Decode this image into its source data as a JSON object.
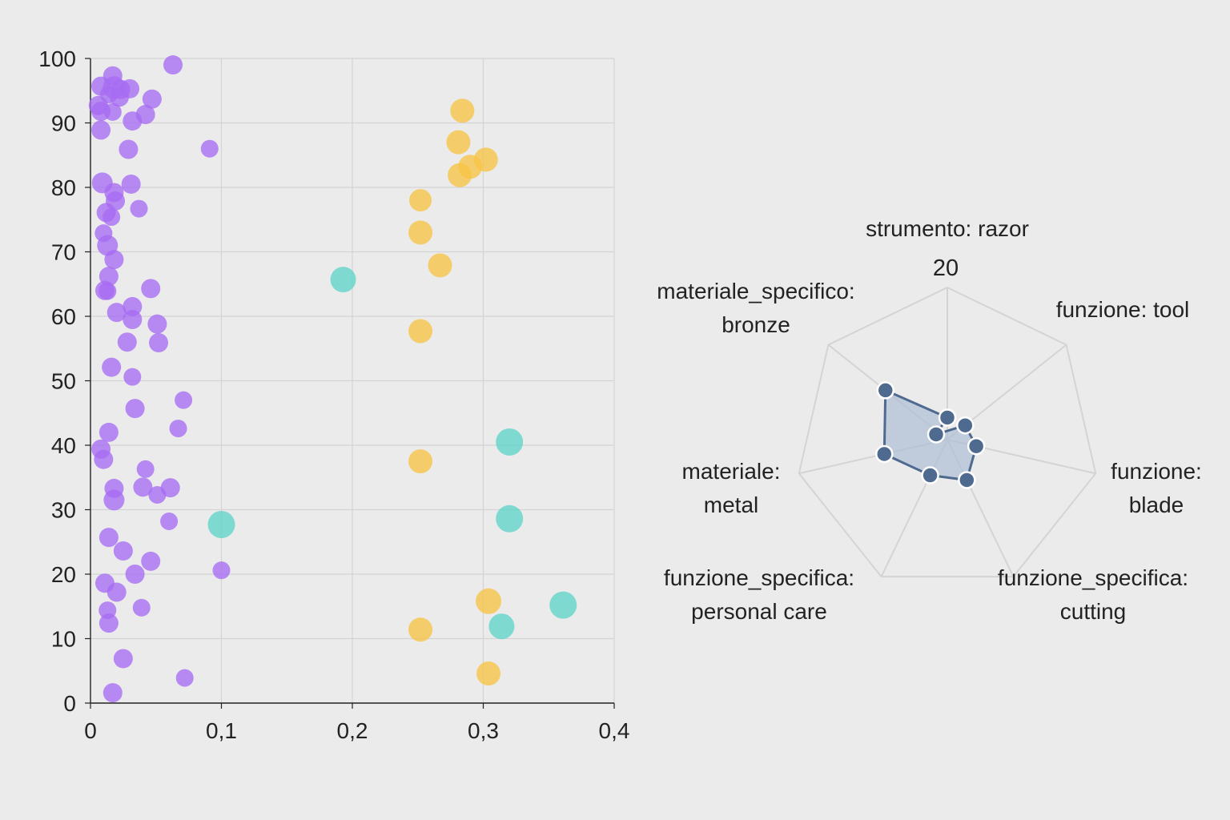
{
  "colors": {
    "background": "#ebebeb",
    "grid": "#d4d4d4",
    "axis": "#222222",
    "purple": "#a66cf2",
    "yellow": "#f6c445",
    "teal": "#5fd3c8",
    "radar_stroke": "#4f6a8f",
    "radar_fill": "#aebfd6",
    "radar_point": "#4f6a8f"
  },
  "chart_data": [
    {
      "type": "scatter",
      "title": "",
      "xlabel": "",
      "ylabel": "",
      "xlim": [
        0,
        0.4
      ],
      "ylim": [
        0,
        100
      ],
      "x_ticks": [
        {
          "value": 0,
          "label": "0"
        },
        {
          "value": 0.1,
          "label": "0,1"
        },
        {
          "value": 0.2,
          "label": "0,2"
        },
        {
          "value": 0.3,
          "label": "0,3"
        },
        {
          "value": 0.4,
          "label": "0,4"
        }
      ],
      "y_ticks": [
        {
          "value": 0,
          "label": "0"
        },
        {
          "value": 10,
          "label": "10"
        },
        {
          "value": 20,
          "label": "20"
        },
        {
          "value": 30,
          "label": "30"
        },
        {
          "value": 40,
          "label": "40"
        },
        {
          "value": 50,
          "label": "50"
        },
        {
          "value": 60,
          "label": "60"
        },
        {
          "value": 70,
          "label": "70"
        },
        {
          "value": 80,
          "label": "80"
        },
        {
          "value": 90,
          "label": "90"
        },
        {
          "value": 100,
          "label": "100"
        }
      ],
      "grid": true,
      "series": [
        {
          "color_key": "purple",
          "points": [
            {
              "x": 0.063,
              "y": 99.0,
              "s": 12
            },
            {
              "x": 0.017,
              "y": 97.3,
              "s": 12
            },
            {
              "x": 0.008,
              "y": 95.7,
              "s": 12
            },
            {
              "x": 0.018,
              "y": 95.5,
              "s": 14
            },
            {
              "x": 0.023,
              "y": 95.2,
              "s": 12
            },
            {
              "x": 0.03,
              "y": 95.3,
              "s": 12
            },
            {
              "x": 0.014,
              "y": 94.4,
              "s": 11
            },
            {
              "x": 0.022,
              "y": 94.0,
              "s": 12
            },
            {
              "x": 0.047,
              "y": 93.7,
              "s": 12
            },
            {
              "x": 0.006,
              "y": 92.7,
              "s": 12
            },
            {
              "x": 0.008,
              "y": 91.8,
              "s": 12
            },
            {
              "x": 0.017,
              "y": 91.7,
              "s": 11
            },
            {
              "x": 0.042,
              "y": 91.3,
              "s": 12
            },
            {
              "x": 0.032,
              "y": 90.3,
              "s": 12
            },
            {
              "x": 0.008,
              "y": 88.9,
              "s": 12
            },
            {
              "x": 0.029,
              "y": 85.9,
              "s": 12
            },
            {
              "x": 0.091,
              "y": 86.0,
              "s": 11
            },
            {
              "x": 0.009,
              "y": 80.7,
              "s": 13
            },
            {
              "x": 0.031,
              "y": 80.5,
              "s": 12
            },
            {
              "x": 0.018,
              "y": 79.2,
              "s": 12
            },
            {
              "x": 0.019,
              "y": 77.9,
              "s": 12
            },
            {
              "x": 0.037,
              "y": 76.7,
              "s": 11
            },
            {
              "x": 0.012,
              "y": 76.1,
              "s": 12
            },
            {
              "x": 0.016,
              "y": 75.4,
              "s": 11
            },
            {
              "x": 0.01,
              "y": 72.9,
              "s": 11
            },
            {
              "x": 0.013,
              "y": 71.0,
              "s": 13
            },
            {
              "x": 0.018,
              "y": 68.8,
              "s": 12
            },
            {
              "x": 0.014,
              "y": 66.2,
              "s": 12
            },
            {
              "x": 0.046,
              "y": 64.3,
              "s": 12
            },
            {
              "x": 0.011,
              "y": 64.0,
              "s": 12
            },
            {
              "x": 0.013,
              "y": 63.9,
              "s": 11
            },
            {
              "x": 0.032,
              "y": 61.5,
              "s": 12
            },
            {
              "x": 0.02,
              "y": 60.6,
              "s": 12
            },
            {
              "x": 0.032,
              "y": 59.5,
              "s": 12
            },
            {
              "x": 0.051,
              "y": 58.8,
              "s": 12
            },
            {
              "x": 0.028,
              "y": 56.0,
              "s": 12
            },
            {
              "x": 0.052,
              "y": 55.9,
              "s": 12
            },
            {
              "x": 0.016,
              "y": 52.1,
              "s": 12
            },
            {
              "x": 0.032,
              "y": 50.6,
              "s": 11
            },
            {
              "x": 0.071,
              "y": 47.0,
              "s": 11
            },
            {
              "x": 0.034,
              "y": 45.7,
              "s": 12
            },
            {
              "x": 0.067,
              "y": 42.6,
              "s": 11
            },
            {
              "x": 0.014,
              "y": 42.0,
              "s": 12
            },
            {
              "x": 0.008,
              "y": 39.4,
              "s": 12
            },
            {
              "x": 0.01,
              "y": 37.8,
              "s": 12
            },
            {
              "x": 0.042,
              "y": 36.3,
              "s": 11
            },
            {
              "x": 0.018,
              "y": 33.3,
              "s": 12
            },
            {
              "x": 0.04,
              "y": 33.5,
              "s": 12
            },
            {
              "x": 0.061,
              "y": 33.4,
              "s": 12
            },
            {
              "x": 0.051,
              "y": 32.3,
              "s": 11
            },
            {
              "x": 0.018,
              "y": 31.5,
              "s": 13
            },
            {
              "x": 0.06,
              "y": 28.2,
              "s": 11
            },
            {
              "x": 0.014,
              "y": 25.7,
              "s": 12
            },
            {
              "x": 0.025,
              "y": 23.6,
              "s": 12
            },
            {
              "x": 0.046,
              "y": 22.0,
              "s": 12
            },
            {
              "x": 0.034,
              "y": 20.0,
              "s": 12
            },
            {
              "x": 0.1,
              "y": 20.6,
              "s": 11
            },
            {
              "x": 0.011,
              "y": 18.6,
              "s": 12
            },
            {
              "x": 0.02,
              "y": 17.2,
              "s": 12
            },
            {
              "x": 0.039,
              "y": 14.8,
              "s": 11
            },
            {
              "x": 0.013,
              "y": 14.4,
              "s": 11
            },
            {
              "x": 0.014,
              "y": 12.4,
              "s": 12
            },
            {
              "x": 0.025,
              "y": 6.9,
              "s": 12
            },
            {
              "x": 0.072,
              "y": 3.9,
              "s": 11
            },
            {
              "x": 0.017,
              "y": 1.6,
              "s": 12
            }
          ]
        },
        {
          "color_key": "yellow",
          "points": [
            {
              "x": 0.284,
              "y": 91.9,
              "s": 15
            },
            {
              "x": 0.281,
              "y": 87.0,
              "s": 15
            },
            {
              "x": 0.302,
              "y": 84.3,
              "s": 15
            },
            {
              "x": 0.29,
              "y": 83.2,
              "s": 15
            },
            {
              "x": 0.282,
              "y": 81.9,
              "s": 15
            },
            {
              "x": 0.252,
              "y": 78.0,
              "s": 14
            },
            {
              "x": 0.252,
              "y": 73.0,
              "s": 15
            },
            {
              "x": 0.267,
              "y": 67.9,
              "s": 15
            },
            {
              "x": 0.252,
              "y": 57.7,
              "s": 15
            },
            {
              "x": 0.252,
              "y": 37.5,
              "s": 15
            },
            {
              "x": 0.304,
              "y": 15.8,
              "s": 16
            },
            {
              "x": 0.252,
              "y": 11.4,
              "s": 15
            },
            {
              "x": 0.304,
              "y": 4.6,
              "s": 15
            }
          ]
        },
        {
          "color_key": "teal",
          "points": [
            {
              "x": 0.193,
              "y": 65.7,
              "s": 16
            },
            {
              "x": 0.32,
              "y": 40.5,
              "s": 17
            },
            {
              "x": 0.32,
              "y": 28.6,
              "s": 17
            },
            {
              "x": 0.1,
              "y": 27.7,
              "s": 17
            },
            {
              "x": 0.361,
              "y": 15.2,
              "s": 17
            },
            {
              "x": 0.314,
              "y": 11.9,
              "s": 16
            }
          ]
        }
      ]
    },
    {
      "type": "radar",
      "title": "",
      "max": 20,
      "scale_label": "20",
      "axes": [
        {
          "name": [
            "strumento: razor"
          ],
          "value": 2.9
        },
        {
          "name": [
            "funzione: tool"
          ],
          "value": 3.0
        },
        {
          "name": [
            "funzione:",
            "blade"
          ],
          "value": 3.9
        },
        {
          "name": [
            "funzione_specifica:",
            "cutting"
          ],
          "value": 5.9
        },
        {
          "name": [
            "funzione_specifica:",
            "personal care"
          ],
          "value": 5.2
        },
        {
          "name": [
            "materiale:",
            "metal"
          ],
          "value": 8.5
        },
        {
          "name": [
            "materiale_specifico:",
            "bronze"
          ],
          "value": 10.4
        }
      ],
      "hub_value": 1.3
    }
  ]
}
